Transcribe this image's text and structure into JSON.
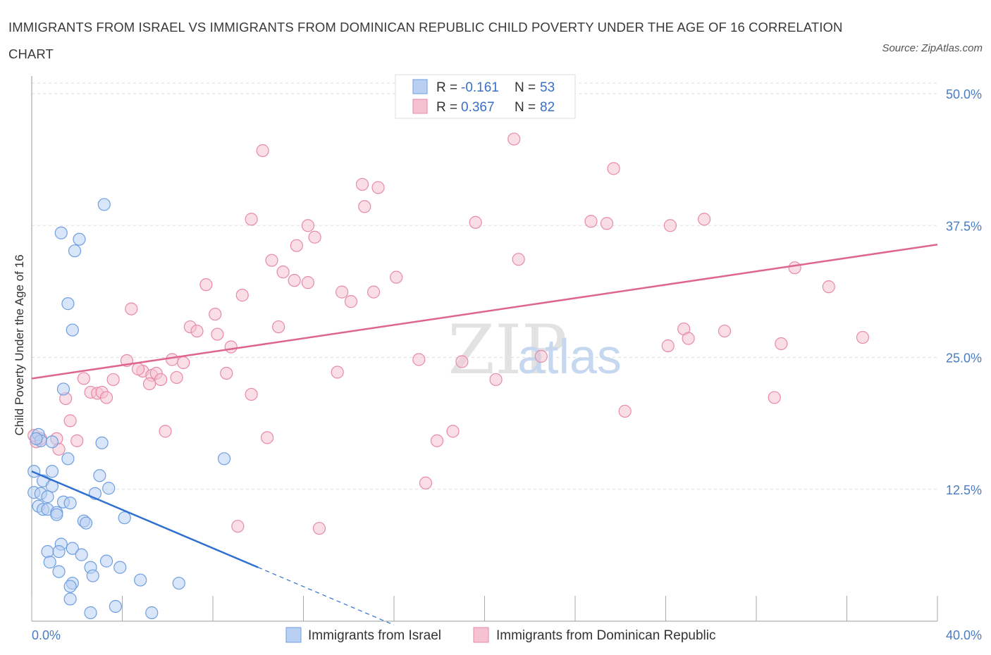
{
  "title": "IMMIGRANTS FROM ISRAEL VS IMMIGRANTS FROM DOMINICAN REPUBLIC CHILD POVERTY UNDER THE AGE OF 16 CORRELATION CHART",
  "source": "Source: ZipAtlas.com",
  "watermark": "ZIPatlas",
  "colors": {
    "israel": "#6e9fe0",
    "israel_fill": "#b9d0f3",
    "israel_line": "#2f6fd0",
    "dominican": "#e78aa8",
    "dominican_fill": "#f6c2d2",
    "dominican_line": "#de6590",
    "grid": "#dddddd",
    "tick_text": "#4a7cc4"
  },
  "legend_box": {
    "r_label": "R =",
    "n_label": "N =",
    "israel_r": "-0.161",
    "israel_n": "53",
    "dominican_r": "0.367",
    "dominican_n": "82"
  },
  "chart_data": {
    "type": "scatter",
    "xlabel": "",
    "ylabel": "Child Poverty Under the Age of 16",
    "xlim": [
      0,
      40
    ],
    "ylim": [
      0,
      50
    ],
    "x_tick_labels": [
      "0.0%",
      "40.0%"
    ],
    "y_tick_labels": [
      "12.5%",
      "25.0%",
      "37.5%",
      "50.0%"
    ],
    "y_ticks": [
      12.5,
      25.0,
      37.5,
      50.0
    ],
    "grid": true,
    "legend_position": "bottom-center",
    "series": [
      {
        "name": "Immigrants from Israel",
        "r": -0.161,
        "n": 53,
        "trend": {
          "x0": 0,
          "y0": 14.2,
          "x1": 10.0,
          "y1": 5.1,
          "dash_to_x": 16.0
        },
        "points": [
          [
            3.2,
            39.5
          ],
          [
            1.3,
            36.8
          ],
          [
            2.1,
            36.2
          ],
          [
            1.9,
            35.1
          ],
          [
            1.6,
            30.1
          ],
          [
            1.8,
            27.6
          ],
          [
            1.4,
            22.0
          ],
          [
            0.3,
            17.7
          ],
          [
            0.4,
            17.1
          ],
          [
            0.2,
            17.3
          ],
          [
            0.9,
            17.0
          ],
          [
            3.1,
            16.9
          ],
          [
            1.6,
            15.4
          ],
          [
            8.5,
            15.4
          ],
          [
            0.1,
            14.2
          ],
          [
            0.9,
            14.2
          ],
          [
            3.0,
            13.8
          ],
          [
            0.5,
            13.3
          ],
          [
            0.9,
            12.8
          ],
          [
            3.4,
            12.6
          ],
          [
            0.1,
            12.2
          ],
          [
            2.8,
            12.1
          ],
          [
            0.4,
            12.1
          ],
          [
            0.7,
            11.8
          ],
          [
            1.4,
            11.3
          ],
          [
            1.7,
            11.2
          ],
          [
            0.3,
            10.9
          ],
          [
            0.5,
            10.6
          ],
          [
            0.7,
            10.6
          ],
          [
            1.1,
            10.3
          ],
          [
            1.1,
            10.1
          ],
          [
            2.3,
            9.5
          ],
          [
            4.1,
            9.8
          ],
          [
            2.4,
            9.3
          ],
          [
            1.3,
            7.3
          ],
          [
            1.8,
            6.9
          ],
          [
            0.7,
            6.6
          ],
          [
            1.2,
            6.6
          ],
          [
            2.2,
            6.3
          ],
          [
            0.8,
            5.6
          ],
          [
            3.3,
            5.7
          ],
          [
            2.6,
            5.1
          ],
          [
            3.9,
            5.1
          ],
          [
            1.2,
            4.7
          ],
          [
            2.7,
            4.3
          ],
          [
            4.8,
            3.9
          ],
          [
            6.5,
            3.6
          ],
          [
            1.8,
            3.6
          ],
          [
            1.7,
            3.3
          ],
          [
            1.7,
            2.1
          ],
          [
            3.7,
            1.4
          ],
          [
            2.6,
            0.8
          ],
          [
            5.3,
            0.8
          ]
        ]
      },
      {
        "name": "Immigrants from Dominican Republic",
        "r": 0.367,
        "n": 82,
        "trend": {
          "x0": 0,
          "y0": 23.0,
          "x1": 40.0,
          "y1": 35.7
        },
        "points": [
          [
            16.9,
            48.5
          ],
          [
            21.3,
            45.7
          ],
          [
            10.2,
            44.6
          ],
          [
            25.7,
            42.9
          ],
          [
            14.6,
            41.4
          ],
          [
            15.3,
            41.1
          ],
          [
            14.7,
            39.3
          ],
          [
            9.7,
            38.1
          ],
          [
            19.6,
            37.8
          ],
          [
            24.7,
            37.9
          ],
          [
            25.4,
            37.7
          ],
          [
            28.2,
            37.5
          ],
          [
            29.7,
            38.1
          ],
          [
            12.2,
            37.5
          ],
          [
            12.5,
            36.4
          ],
          [
            11.7,
            35.6
          ],
          [
            10.6,
            34.2
          ],
          [
            21.5,
            34.3
          ],
          [
            33.7,
            33.5
          ],
          [
            11.1,
            33.1
          ],
          [
            11.6,
            32.3
          ],
          [
            12.2,
            32.1
          ],
          [
            16.1,
            32.6
          ],
          [
            7.7,
            31.9
          ],
          [
            35.2,
            31.7
          ],
          [
            13.7,
            31.2
          ],
          [
            15.1,
            31.2
          ],
          [
            9.3,
            30.9
          ],
          [
            14.1,
            30.3
          ],
          [
            4.4,
            29.6
          ],
          [
            8.1,
            29.1
          ],
          [
            7.0,
            27.9
          ],
          [
            10.9,
            27.9
          ],
          [
            7.3,
            27.5
          ],
          [
            28.8,
            27.7
          ],
          [
            8.2,
            27.2
          ],
          [
            30.6,
            27.5
          ],
          [
            29.0,
            26.8
          ],
          [
            36.7,
            26.9
          ],
          [
            28.1,
            26.1
          ],
          [
            33.1,
            26.3
          ],
          [
            8.8,
            26.0
          ],
          [
            4.2,
            24.7
          ],
          [
            6.2,
            24.8
          ],
          [
            6.7,
            24.5
          ],
          [
            22.5,
            25.1
          ],
          [
            17.1,
            24.8
          ],
          [
            19.0,
            24.6
          ],
          [
            4.9,
            23.7
          ],
          [
            4.7,
            23.9
          ],
          [
            8.6,
            23.5
          ],
          [
            5.3,
            23.3
          ],
          [
            5.5,
            23.5
          ],
          [
            13.5,
            23.6
          ],
          [
            2.3,
            23.0
          ],
          [
            3.6,
            22.9
          ],
          [
            5.7,
            22.9
          ],
          [
            6.4,
            23.1
          ],
          [
            5.2,
            22.5
          ],
          [
            20.5,
            22.9
          ],
          [
            2.6,
            21.7
          ],
          [
            2.9,
            21.6
          ],
          [
            3.1,
            21.7
          ],
          [
            3.3,
            21.2
          ],
          [
            9.7,
            21.5
          ],
          [
            1.5,
            21.1
          ],
          [
            32.8,
            21.2
          ],
          [
            26.2,
            19.9
          ],
          [
            1.7,
            19.0
          ],
          [
            5.9,
            18.0
          ],
          [
            18.6,
            18.0
          ],
          [
            10.4,
            17.4
          ],
          [
            17.9,
            17.1
          ],
          [
            2.0,
            17.1
          ],
          [
            1.1,
            17.3
          ],
          [
            0.2,
            17.0
          ],
          [
            0.4,
            17.3
          ],
          [
            1.2,
            16.3
          ],
          [
            17.4,
            13.1
          ],
          [
            9.1,
            9.0
          ],
          [
            12.7,
            8.8
          ],
          [
            0.1,
            17.6
          ]
        ]
      }
    ]
  }
}
